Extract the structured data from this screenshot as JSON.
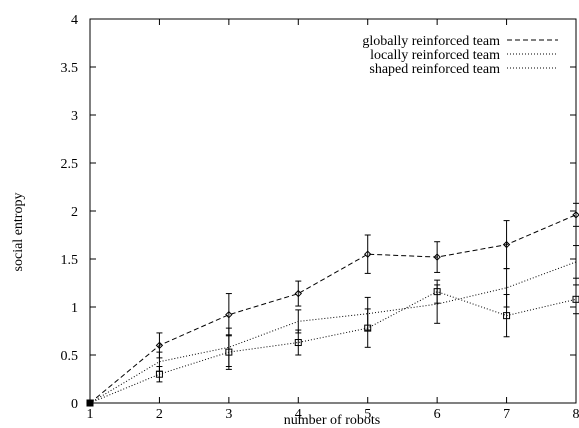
{
  "chart_data": {
    "type": "line",
    "title": "",
    "xlabel": "number of robots",
    "ylabel": "social entropy",
    "x": [
      1,
      2,
      3,
      4,
      5,
      6,
      7,
      8
    ],
    "xlim": [
      1,
      8
    ],
    "ylim": [
      0,
      4
    ],
    "xticks": [
      "1",
      "2",
      "3",
      "4",
      "5",
      "6",
      "7",
      "8"
    ],
    "yticks": [
      "0",
      "0.5",
      "1",
      "1.5",
      "2",
      "2.5",
      "3",
      "3.5",
      "4"
    ],
    "grid": false,
    "legend_position": "top-right",
    "series": [
      {
        "name": "globally reinforced team",
        "line_style": "dashed",
        "marker": "diamond",
        "values": [
          0,
          0.6,
          0.92,
          1.14,
          1.55,
          1.52,
          1.65,
          1.96
        ],
        "error": [
          0,
          0.13,
          0.22,
          0.13,
          0.2,
          0.16,
          0.25,
          0.12
        ]
      },
      {
        "name": "locally reinforced team",
        "line_style": "dotted",
        "marker": "none",
        "values": [
          0,
          0.43,
          0.58,
          0.85,
          0.93,
          1.03,
          1.2,
          1.47
        ],
        "error": [
          0,
          0.1,
          0.2,
          0.12,
          0.17,
          0.2,
          0.2,
          0.17
        ]
      },
      {
        "name": "shaped reinforced team",
        "line_style": "dotted",
        "marker": "square",
        "values": [
          0,
          0.3,
          0.53,
          0.63,
          0.78,
          1.16,
          0.91,
          1.08
        ],
        "error": [
          0,
          0.08,
          0.18,
          0.13,
          0.2,
          0.12,
          0.22,
          0.15
        ]
      },
      {
        "name": "",
        "line_style": "dotted",
        "marker": "none",
        "values": [
          0,
          0,
          0,
          0,
          0,
          0,
          0,
          0
        ],
        "error": [
          0,
          0,
          0,
          0,
          0,
          0,
          0,
          0
        ]
      }
    ],
    "colors": {
      "lines": "#000000",
      "background": "#ffffff"
    }
  }
}
